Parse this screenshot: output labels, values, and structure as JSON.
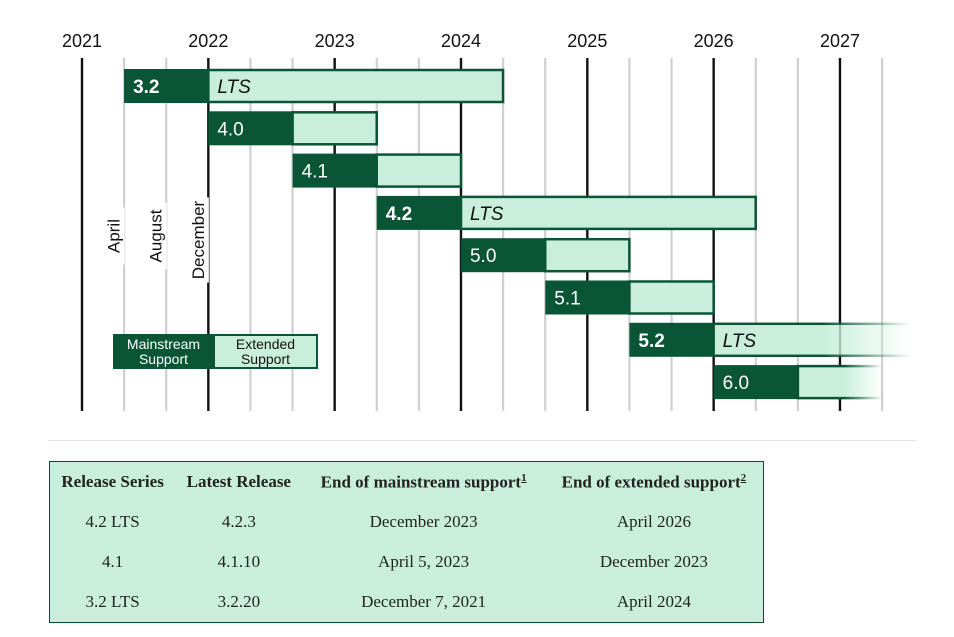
{
  "chart_data": {
    "type": "timeline",
    "years": [
      "2021",
      "2022",
      "2023",
      "2024",
      "2025",
      "2026",
      "2027"
    ],
    "month_labels": [
      "April",
      "August",
      "December"
    ],
    "legend": {
      "mainstream": "Mainstream Support",
      "extended": "Extended Support"
    },
    "lts_label": "LTS",
    "releases": [
      {
        "version": "3.2",
        "lts": true,
        "start": 2021.333,
        "mainstream_end": 2022.0,
        "extended_end": 2024.333
      },
      {
        "version": "4.0",
        "lts": false,
        "start": 2022.0,
        "mainstream_end": 2022.667,
        "extended_end": 2023.333
      },
      {
        "version": "4.1",
        "lts": false,
        "start": 2022.667,
        "mainstream_end": 2023.333,
        "extended_end": 2024.0
      },
      {
        "version": "4.2",
        "lts": true,
        "start": 2023.333,
        "mainstream_end": 2024.0,
        "extended_end": 2026.333
      },
      {
        "version": "5.0",
        "lts": false,
        "start": 2024.0,
        "mainstream_end": 2024.667,
        "extended_end": 2025.333
      },
      {
        "version": "5.1",
        "lts": false,
        "start": 2024.667,
        "mainstream_end": 2025.333,
        "extended_end": 2026.0
      },
      {
        "version": "5.2",
        "lts": true,
        "start": 2025.333,
        "mainstream_end": 2026.0,
        "extended_end": 2028.333
      },
      {
        "version": "6.0",
        "lts": false,
        "start": 2026.0,
        "mainstream_end": 2026.667,
        "extended_end": 2027.333
      }
    ],
    "xlim": [
      2021,
      2027.5
    ]
  },
  "colors": {
    "mainstream": "#0b5537",
    "extended": "#c9efdc",
    "year_line": "#111111",
    "month_line": "#d0d0d0"
  },
  "table": {
    "headers": [
      "Release Series",
      "Latest Release",
      "End of mainstream support",
      "End of extended support"
    ],
    "footnotes": [
      "1",
      "2"
    ],
    "rows": [
      [
        "4.2 LTS",
        "4.2.3",
        "December 2023",
        "April 2026"
      ],
      [
        "4.1",
        "4.1.10",
        "April 5, 2023",
        "December 2023"
      ],
      [
        "3.2 LTS",
        "3.2.20",
        "December 7, 2021",
        "April 2024"
      ]
    ]
  }
}
